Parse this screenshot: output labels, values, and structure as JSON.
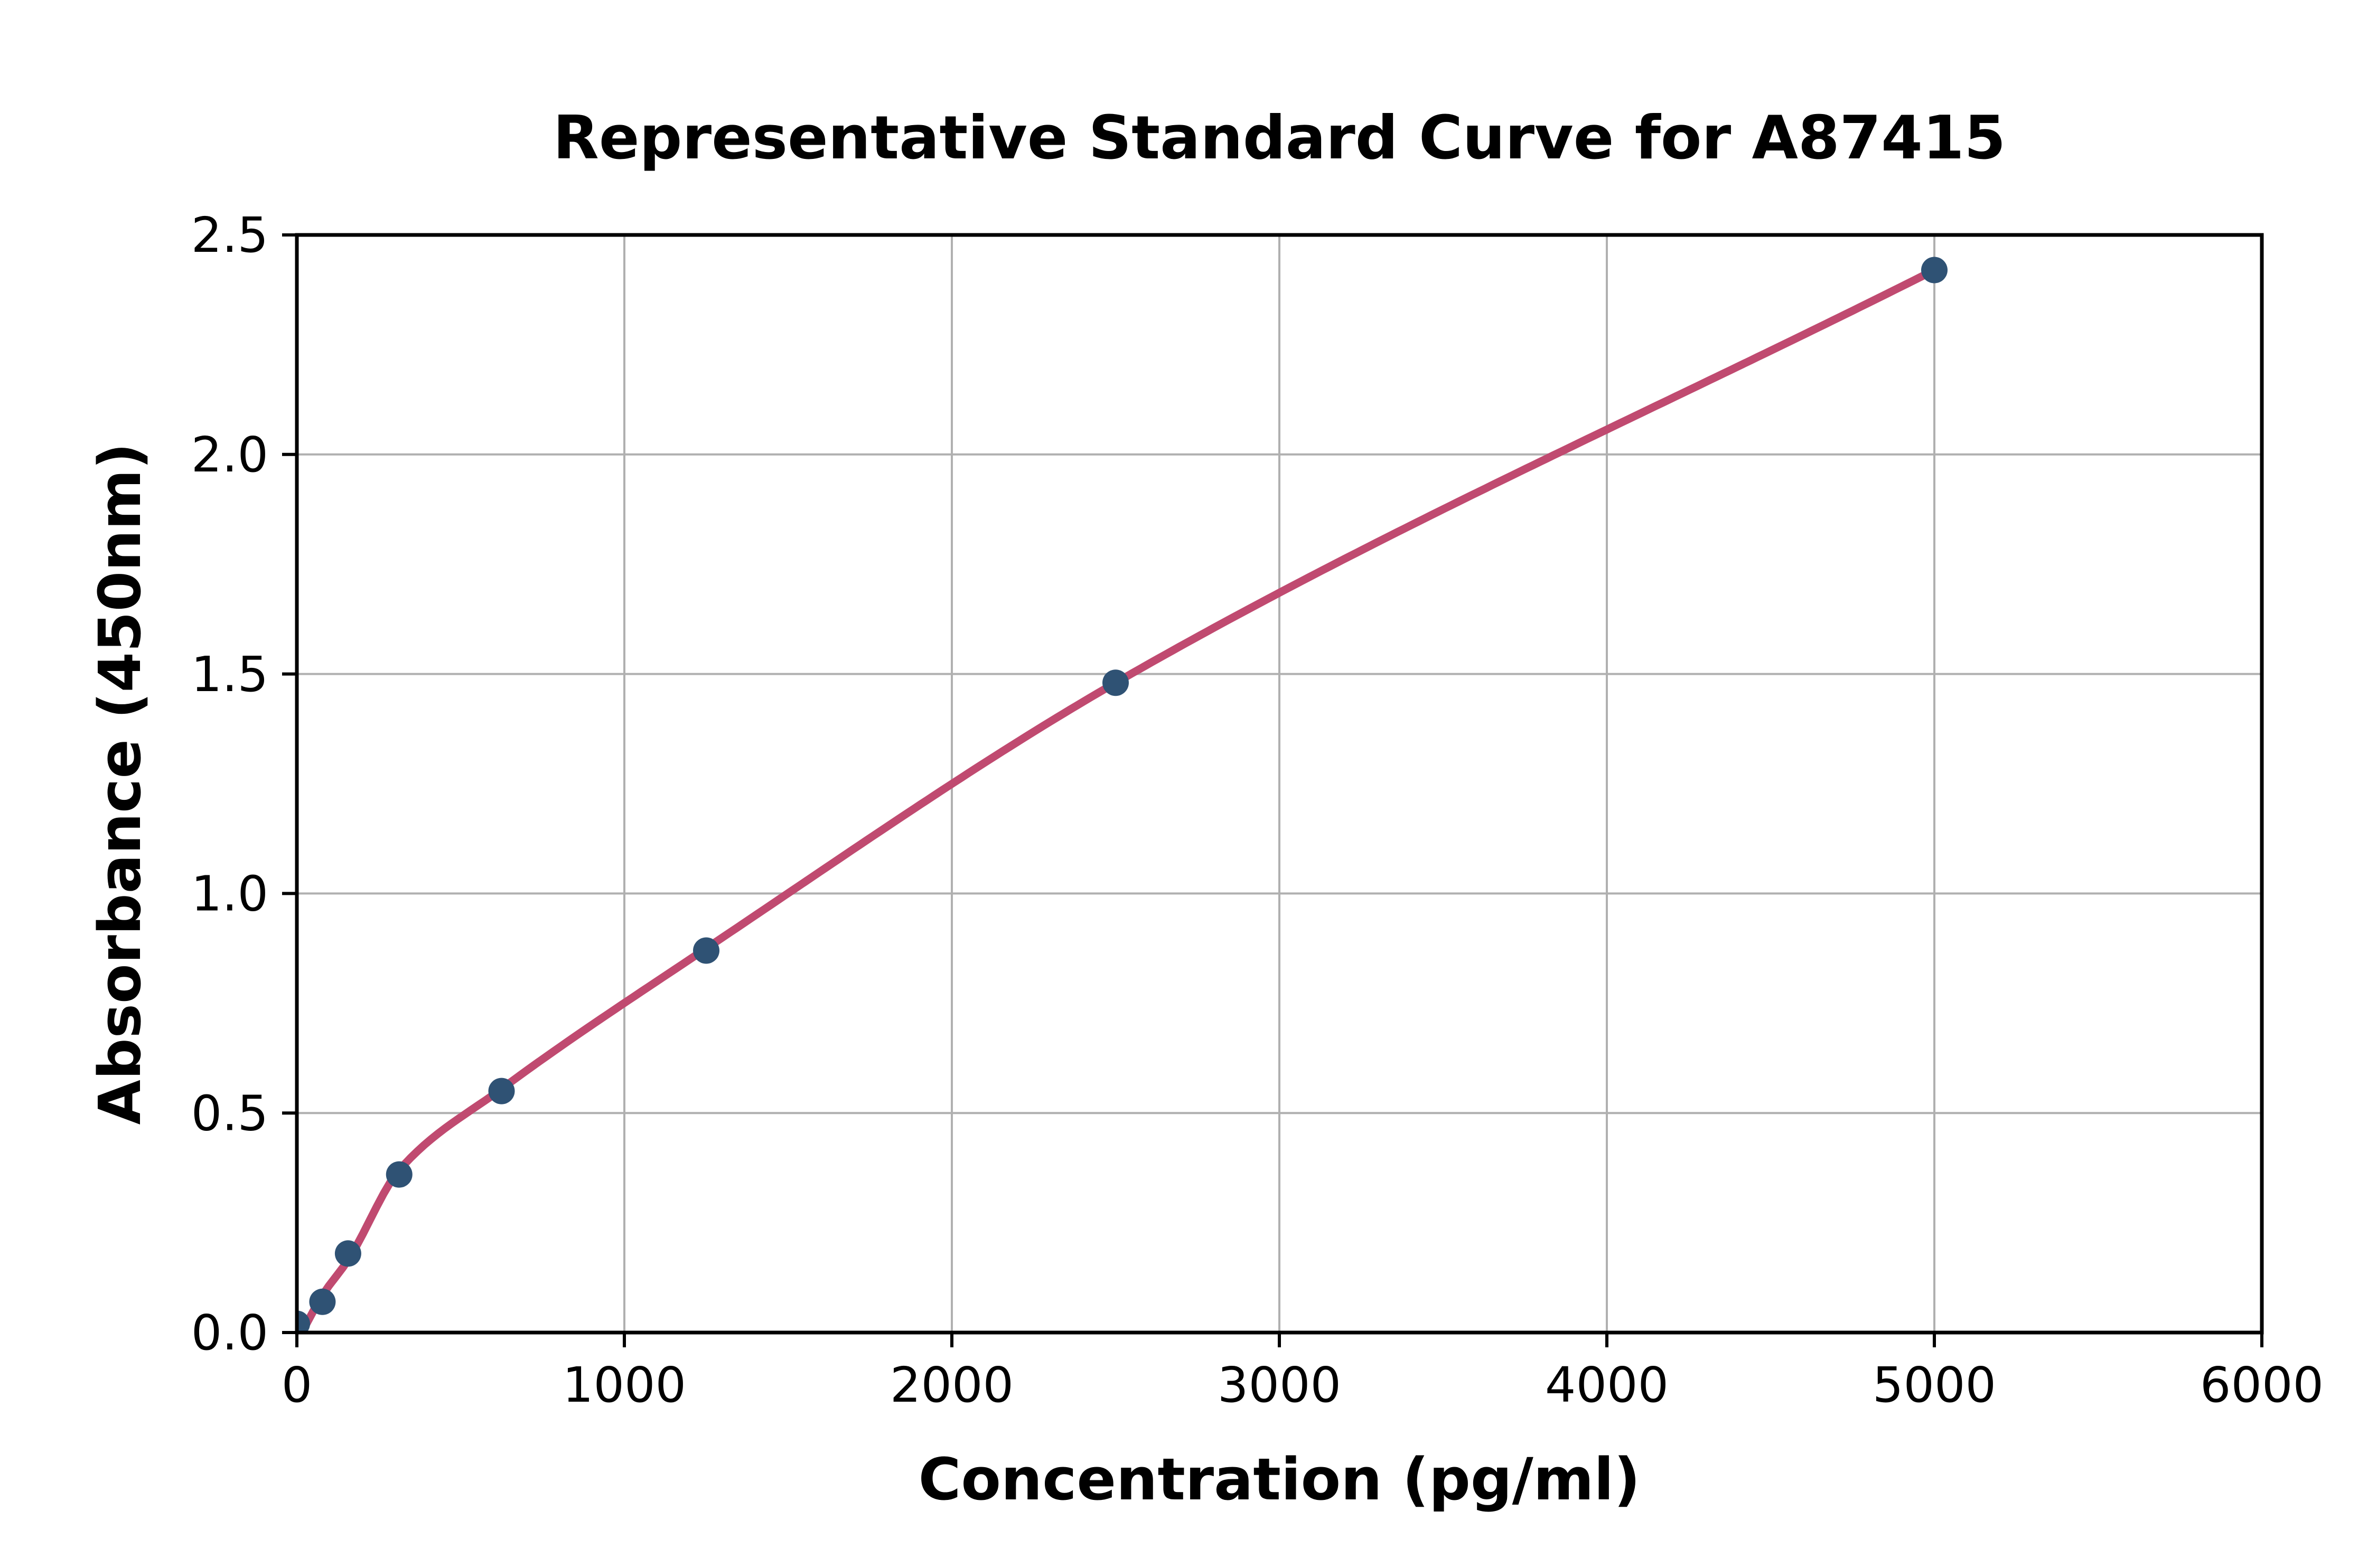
{
  "chart_data": {
    "type": "scatter",
    "title": "Representative Standard Curve for A87415",
    "xlabel": "Concentration (pg/ml)",
    "ylabel": "Absorbance (450nm)",
    "xlim": [
      0,
      6000
    ],
    "ylim": [
      0.0,
      2.5
    ],
    "x_ticks": [
      0,
      1000,
      2000,
      3000,
      4000,
      5000,
      6000
    ],
    "x_tick_labels": [
      "0",
      "1000",
      "2000",
      "3000",
      "4000",
      "5000",
      "6000"
    ],
    "y_ticks": [
      0.0,
      0.5,
      1.0,
      1.5,
      2.0,
      2.5
    ],
    "y_tick_labels": [
      "0.0",
      "0.5",
      "1.0",
      "1.5",
      "2.0",
      "2.5"
    ],
    "grid": true,
    "legend_position": "none",
    "points": {
      "x": [
        0,
        78.1,
        156.3,
        312.5,
        625,
        1250,
        2500,
        5000
      ],
      "y": [
        0.02,
        0.07,
        0.18,
        0.36,
        0.55,
        0.87,
        1.48,
        2.42
      ]
    },
    "fit_anchors": {
      "x": [
        15,
        78.1,
        156.3,
        312.5,
        625,
        1250,
        2500,
        5000
      ],
      "y": [
        0.0,
        0.085,
        0.165,
        0.37,
        0.555,
        0.875,
        1.48,
        2.42
      ]
    },
    "colors": {
      "point": "#2f5274",
      "curve": "#c04a70",
      "grid": "#b0b0b0",
      "axis": "#000000",
      "background": "#ffffff"
    }
  }
}
